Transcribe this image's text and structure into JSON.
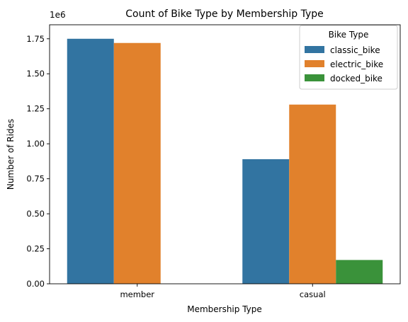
{
  "chart_data": {
    "type": "bar",
    "title": "Count of Bike Type by Membership Type",
    "xlabel": "Membership Type",
    "ylabel": "Number of Rides",
    "y_scale_label": "1e6",
    "ylim": [
      0,
      1.85
    ],
    "yticks": [
      "0.00",
      "0.25",
      "0.50",
      "0.75",
      "1.00",
      "1.25",
      "1.50",
      "1.75"
    ],
    "grid": false,
    "legend": {
      "title": "Bike Type",
      "position": "top-right"
    },
    "categories": [
      "member",
      "casual"
    ],
    "series": [
      {
        "name": "classic_bike",
        "color": "#3274a1",
        "values": [
          1.75,
          0.89
        ]
      },
      {
        "name": "electric_bike",
        "color": "#e1812c",
        "values": [
          1.72,
          1.28
        ]
      },
      {
        "name": "docked_bike",
        "color": "#3a923a",
        "values": [
          0,
          0.17
        ]
      }
    ]
  }
}
